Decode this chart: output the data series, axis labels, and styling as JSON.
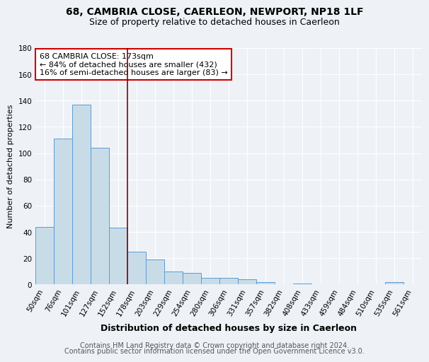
{
  "title": "68, CAMBRIA CLOSE, CAERLEON, NEWPORT, NP18 1LF",
  "subtitle": "Size of property relative to detached houses in Caerleon",
  "xlabel": "Distribution of detached houses by size in Caerleon",
  "ylabel": "Number of detached properties",
  "categories": [
    "50sqm",
    "76sqm",
    "101sqm",
    "127sqm",
    "152sqm",
    "178sqm",
    "203sqm",
    "229sqm",
    "254sqm",
    "280sqm",
    "306sqm",
    "331sqm",
    "357sqm",
    "382sqm",
    "408sqm",
    "433sqm",
    "459sqm",
    "484sqm",
    "510sqm",
    "535sqm",
    "561sqm"
  ],
  "values": [
    44,
    111,
    137,
    104,
    43,
    25,
    19,
    10,
    9,
    5,
    5,
    4,
    2,
    0,
    1,
    0,
    0,
    0,
    0,
    2,
    0
  ],
  "bar_color": "#c8dce8",
  "bar_edge_color": "#5b9bd5",
  "vline_x_index": 5,
  "vline_color": "#8b0000",
  "annotation_text": "68 CAMBRIA CLOSE: 173sqm\n← 84% of detached houses are smaller (432)\n16% of semi-detached houses are larger (83) →",
  "annotation_box_color": "#ffffff",
  "annotation_box_edge": "#cc0000",
  "ylim": [
    0,
    180
  ],
  "yticks": [
    0,
    20,
    40,
    60,
    80,
    100,
    120,
    140,
    160,
    180
  ],
  "footer1": "Contains HM Land Registry data © Crown copyright and database right 2024.",
  "footer2": "Contains public sector information licensed under the Open Government Licence v3.0.",
  "bg_color": "#eef2f7",
  "grid_color": "#ffffff",
  "title_fontsize": 10,
  "subtitle_fontsize": 9,
  "xlabel_fontsize": 9,
  "ylabel_fontsize": 8,
  "tick_fontsize": 7.5,
  "annotation_fontsize": 8,
  "footer_fontsize": 7
}
